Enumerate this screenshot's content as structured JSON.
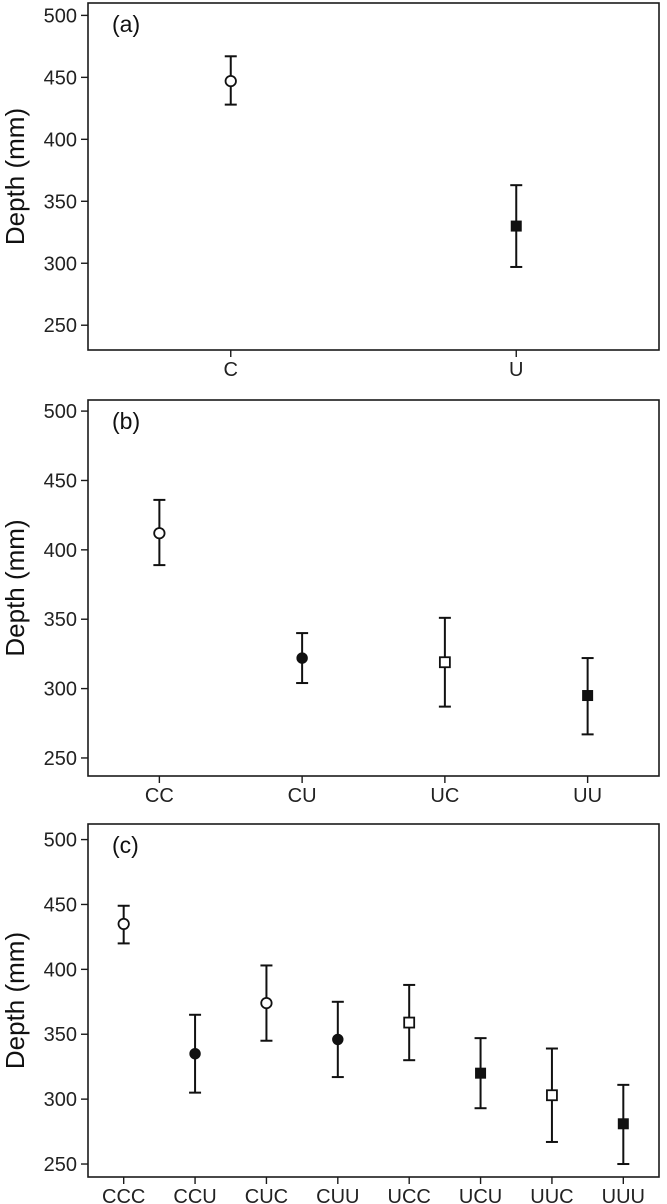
{
  "chart_data": [
    {
      "type": "scatter",
      "panel_label": "(a)",
      "ylabel": "Depth (mm)",
      "ylim": [
        230,
        510
      ],
      "yticks": [
        250,
        300,
        350,
        400,
        450,
        500
      ],
      "grid": false,
      "categories": [
        "C",
        "U"
      ],
      "points": [
        {
          "category": "C",
          "y": 447,
          "low": 428,
          "high": 467,
          "marker": "open-circle"
        },
        {
          "category": "U",
          "y": 330,
          "low": 297,
          "high": 363,
          "marker": "filled-square"
        }
      ]
    },
    {
      "type": "scatter",
      "panel_label": "(b)",
      "ylabel": "Depth (mm)",
      "ylim": [
        237,
        508
      ],
      "yticks": [
        250,
        300,
        350,
        400,
        450,
        500
      ],
      "grid": false,
      "categories": [
        "CC",
        "CU",
        "UC",
        "UU"
      ],
      "points": [
        {
          "category": "CC",
          "y": 412,
          "low": 389,
          "high": 436,
          "marker": "open-circle"
        },
        {
          "category": "CU",
          "y": 322,
          "low": 304,
          "high": 340,
          "marker": "filled-circle"
        },
        {
          "category": "UC",
          "y": 319,
          "low": 287,
          "high": 351,
          "marker": "open-square"
        },
        {
          "category": "UU",
          "y": 295,
          "low": 267,
          "high": 322,
          "marker": "filled-square"
        }
      ]
    },
    {
      "type": "scatter",
      "panel_label": "(c)",
      "ylabel": "Depth (mm)",
      "ylim": [
        240,
        512
      ],
      "yticks": [
        250,
        300,
        350,
        400,
        450,
        500
      ],
      "grid": false,
      "categories": [
        "CCC",
        "CCU",
        "CUC",
        "CUU",
        "UCC",
        "UCU",
        "UUC",
        "UUU"
      ],
      "points": [
        {
          "category": "CCC",
          "y": 435,
          "low": 420,
          "high": 449,
          "marker": "open-circle"
        },
        {
          "category": "CCU",
          "y": 335,
          "low": 305,
          "high": 365,
          "marker": "filled-circle"
        },
        {
          "category": "CUC",
          "y": 374,
          "low": 345,
          "high": 403,
          "marker": "open-circle"
        },
        {
          "category": "CUU",
          "y": 346,
          "low": 317,
          "high": 375,
          "marker": "filled-circle"
        },
        {
          "category": "UCC",
          "y": 359,
          "low": 330,
          "high": 388,
          "marker": "open-square"
        },
        {
          "category": "UCU",
          "y": 320,
          "low": 293,
          "high": 347,
          "marker": "filled-square"
        },
        {
          "category": "UUC",
          "y": 303,
          "low": 267,
          "high": 339,
          "marker": "open-square"
        },
        {
          "category": "UUU",
          "y": 281,
          "low": 250,
          "high": 311,
          "marker": "filled-square"
        }
      ]
    }
  ]
}
